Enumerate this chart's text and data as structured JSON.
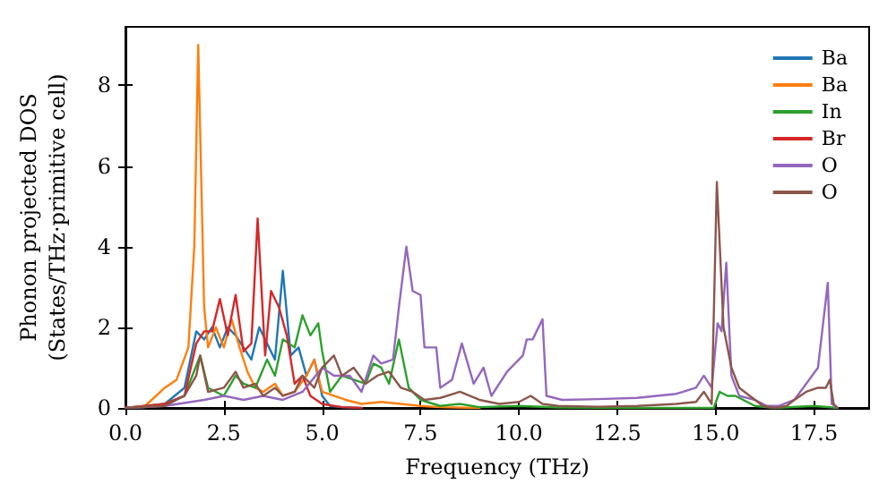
{
  "chart_data": {
    "type": "line",
    "xlabel": "Frequency (THz)",
    "ylabel": "Phonon projected DOS\n(States/THz·primitive cell)",
    "xlim": [
      0,
      18.9
    ],
    "ylim": [
      0,
      9.45
    ],
    "xticks": [
      {
        "value": 0,
        "label": "0.0"
      },
      {
        "value": 2.5,
        "label": "2.5"
      },
      {
        "value": 5,
        "label": "5.0"
      },
      {
        "value": 7.5,
        "label": "7.5"
      },
      {
        "value": 10,
        "label": "10.0"
      },
      {
        "value": 12.5,
        "label": "12.5"
      },
      {
        "value": 15,
        "label": "15.0"
      },
      {
        "value": 17.5,
        "label": "17.5"
      }
    ],
    "yticks": [
      0,
      2,
      4,
      6,
      8
    ],
    "grid": false,
    "legend": "top right",
    "marker": "none",
    "line_style": "solid",
    "series": [
      {
        "name": "Ba",
        "color": "#1f77b4",
        "x": [
          0,
          0.5,
          1,
          1.5,
          1.8,
          2.0,
          2.2,
          2.4,
          2.6,
          2.8,
          3.0,
          3.2,
          3.4,
          3.6,
          3.8,
          4.0,
          4.2,
          4.4,
          4.6,
          4.8,
          5.0,
          5.2,
          5.5,
          6
        ],
        "values": [
          0,
          0.02,
          0.1,
          0.5,
          1.9,
          1.7,
          2.0,
          1.5,
          2.0,
          1.8,
          1.5,
          1.2,
          2.0,
          1.6,
          1.2,
          3.4,
          1.3,
          1.5,
          0.8,
          1.2,
          0.3,
          0.05,
          0.02,
          0
        ]
      },
      {
        "name": "Ba",
        "color": "#ff7f0e",
        "x": [
          0,
          0.5,
          1.0,
          1.3,
          1.6,
          1.75,
          1.85,
          2.0,
          2.1,
          2.3,
          2.5,
          2.7,
          2.9,
          3.1,
          3.3,
          3.5,
          3.8,
          4.0,
          4.3,
          4.6,
          4.8,
          5.0,
          5.3,
          5.6,
          6,
          6.5,
          7,
          7.5,
          8,
          9
        ],
        "values": [
          0,
          0.05,
          0.5,
          0.7,
          1.5,
          4.0,
          9.0,
          2.5,
          1.5,
          2.0,
          1.5,
          2.2,
          1.5,
          0.9,
          0.5,
          0.4,
          0.6,
          0.3,
          0.4,
          0.8,
          1.2,
          0.4,
          0.3,
          0.2,
          0.1,
          0.15,
          0.1,
          0.05,
          0.02,
          0
        ]
      },
      {
        "name": "In",
        "color": "#2ca02c",
        "x": [
          0,
          1,
          1.5,
          1.9,
          2.1,
          2.5,
          2.8,
          3.0,
          3.3,
          3.6,
          3.8,
          4.0,
          4.3,
          4.5,
          4.7,
          4.9,
          5.0,
          5.2,
          5.5,
          5.8,
          6.1,
          6.3,
          6.5,
          6.7,
          6.95,
          7.2,
          7.5,
          8,
          8.5,
          9,
          10,
          11,
          13,
          14.95,
          15.1,
          15.3,
          15.5,
          16,
          16.5,
          17.5,
          18.1
        ],
        "values": [
          0,
          0.1,
          0.3,
          1.3,
          0.5,
          0.3,
          0.8,
          0.6,
          0.5,
          1.2,
          0.8,
          1.7,
          1.5,
          2.3,
          1.8,
          2.1,
          1.4,
          0.4,
          0.8,
          0.7,
          0.6,
          1.1,
          1.0,
          0.6,
          1.7,
          0.5,
          0.2,
          0.05,
          0.1,
          0.02,
          0.05,
          0.01,
          0,
          0,
          0.4,
          0.3,
          0.3,
          0.05,
          0,
          0.05,
          0
        ]
      },
      {
        "name": "Br",
        "color": "#d62728",
        "x": [
          0,
          1,
          1.5,
          1.8,
          2.0,
          2.2,
          2.4,
          2.6,
          2.8,
          3.0,
          3.2,
          3.36,
          3.55,
          3.7,
          3.9,
          4.1,
          4.3,
          4.5,
          4.7,
          5.0,
          5.5,
          6
        ],
        "values": [
          0,
          0.1,
          0.3,
          1.6,
          1.9,
          1.9,
          2.7,
          1.8,
          2.8,
          1.4,
          1.6,
          4.7,
          1.3,
          2.9,
          2.5,
          1.8,
          0.6,
          0.8,
          0.3,
          0.1,
          0.02,
          0
        ]
      },
      {
        "name": "O",
        "color": "#9467bd",
        "x": [
          0,
          1,
          2,
          2.5,
          3.0,
          3.5,
          4,
          4.5,
          5.0,
          5.3,
          5.7,
          6.0,
          6.3,
          6.5,
          6.8,
          6.95,
          7.14,
          7.3,
          7.5,
          7.6,
          7.9,
          8.0,
          8.3,
          8.55,
          8.85,
          9.1,
          9.3,
          9.7,
          10.1,
          10.2,
          10.35,
          10.6,
          10.7,
          11.1,
          12,
          13,
          14,
          14.5,
          14.7,
          14.9,
          15.05,
          15.15,
          15.27,
          15.4,
          15.6,
          16.0,
          16.3,
          16.6,
          17.0,
          17.3,
          17.6,
          17.85,
          17.95,
          18.1
        ],
        "values": [
          0,
          0.05,
          0.2,
          0.3,
          0.2,
          0.3,
          0.2,
          0.4,
          1.0,
          0.8,
          0.8,
          0.4,
          1.3,
          1.1,
          1.2,
          2.5,
          4.0,
          2.9,
          2.8,
          1.5,
          1.5,
          0.5,
          0.7,
          1.6,
          0.6,
          1.0,
          0.3,
          0.9,
          1.3,
          1.7,
          1.7,
          2.2,
          0.3,
          0.2,
          0.22,
          0.25,
          0.35,
          0.5,
          0.8,
          0.5,
          2.1,
          1.9,
          3.6,
          0.8,
          0.3,
          0.2,
          0.05,
          0.05,
          0.2,
          0.6,
          1.0,
          3.1,
          0.1,
          0
        ]
      },
      {
        "name": "O",
        "color": "#8c564b",
        "x": [
          0,
          1,
          1.5,
          1.8,
          1.9,
          2.1,
          2.5,
          2.8,
          3.0,
          3.3,
          3.5,
          3.8,
          4.0,
          4.3,
          4.5,
          4.8,
          5.0,
          5.3,
          5.5,
          5.8,
          6.1,
          6.4,
          6.7,
          7.0,
          7.3,
          7.6,
          8.0,
          8.5,
          9.0,
          9.5,
          10,
          10.3,
          10.6,
          11,
          12,
          13,
          14,
          14.5,
          14.7,
          14.9,
          15.03,
          15.2,
          15.4,
          15.6,
          16,
          16.2,
          16.5,
          16.8,
          17.0,
          17.3,
          17.6,
          17.8,
          17.9,
          18.0,
          18.1
        ],
        "values": [
          0,
          0.05,
          0.3,
          0.8,
          1.3,
          0.4,
          0.5,
          0.9,
          0.5,
          0.6,
          0.3,
          0.5,
          0.3,
          0.4,
          0.8,
          0.5,
          1.0,
          1.3,
          0.8,
          1.0,
          0.6,
          0.8,
          0.9,
          0.5,
          0.4,
          0.2,
          0.25,
          0.4,
          0.2,
          0.1,
          0.15,
          0.3,
          0.1,
          0.05,
          0.03,
          0.05,
          0.1,
          0.15,
          0.4,
          0.1,
          5.6,
          2.0,
          1.0,
          0.5,
          0.2,
          0.05,
          0,
          0.05,
          0.2,
          0.4,
          0.5,
          0.5,
          0.7,
          0.1,
          0
        ]
      }
    ]
  }
}
